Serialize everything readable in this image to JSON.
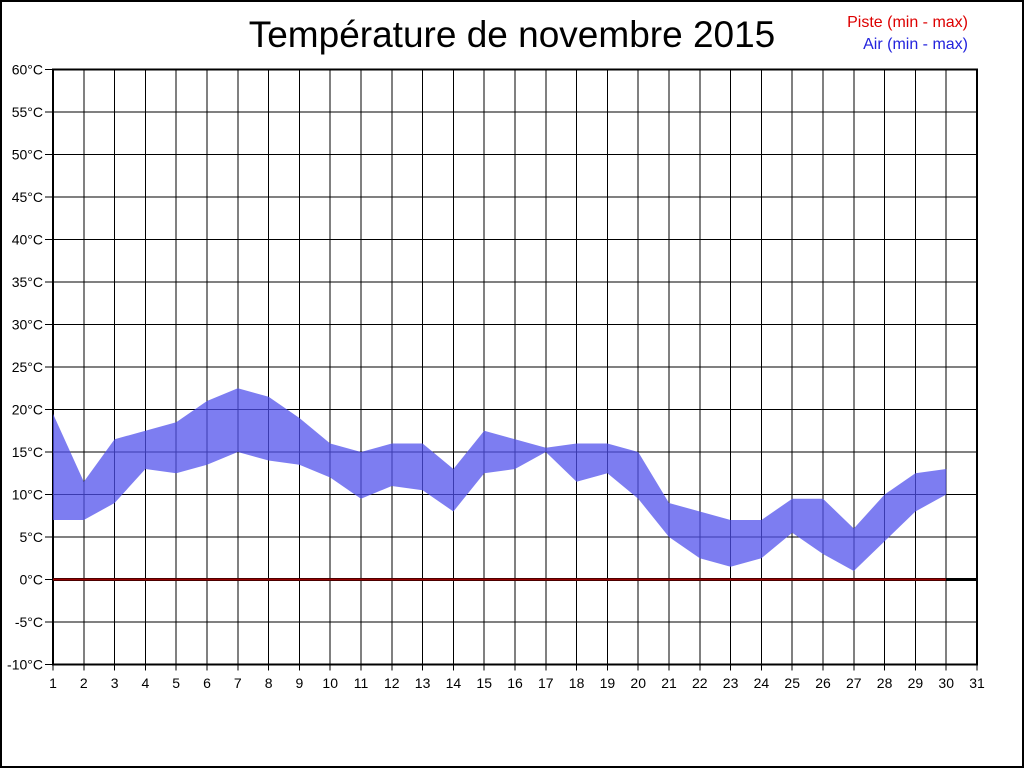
{
  "chart_data": {
    "type": "area",
    "title": "Température de novembre 2015",
    "legend": [
      {
        "label": "Piste (min - max)",
        "color": "#DD0000"
      },
      {
        "label": "Air (min - max)",
        "color": "#2222DD"
      }
    ],
    "xlabel": "",
    "ylabel": "",
    "xlim": [
      1,
      31
    ],
    "ylim": [
      -10,
      60
    ],
    "grid": true,
    "legend_position": "top-right",
    "x_tick_labels": [
      "1",
      "2",
      "3",
      "4",
      "5",
      "6",
      "7",
      "8",
      "9",
      "10",
      "11",
      "12",
      "13",
      "14",
      "15",
      "16",
      "17",
      "18",
      "19",
      "20",
      "21",
      "22",
      "23",
      "24",
      "25",
      "26",
      "27",
      "28",
      "29",
      "30",
      "31"
    ],
    "y_tick_values": [
      60,
      55,
      50,
      45,
      40,
      35,
      30,
      25,
      20,
      15,
      10,
      5,
      0,
      -5,
      -10
    ],
    "y_tick_labels": [
      "60°C",
      "55°C",
      "50°C",
      "45°C",
      "40°C",
      "35°C",
      "30°C",
      "25°C",
      "20°C",
      "15°C",
      "10°C",
      "5°C",
      "0°C",
      "-5°C",
      "-10°C"
    ],
    "days": [
      1,
      2,
      3,
      4,
      5,
      6,
      7,
      8,
      9,
      10,
      11,
      12,
      13,
      14,
      15,
      16,
      17,
      18,
      19,
      20,
      21,
      22,
      23,
      24,
      25,
      26,
      27,
      28,
      29,
      30
    ],
    "series": [
      {
        "name": "Air max",
        "values": [
          19.5,
          11.5,
          16.5,
          17.5,
          18.5,
          21,
          22.5,
          21.5,
          19,
          16,
          15,
          16,
          16,
          13,
          17.5,
          16.5,
          15.5,
          16,
          16,
          15,
          9,
          8,
          7,
          7,
          9.5,
          9.5,
          6,
          10,
          12.5,
          13
        ]
      },
      {
        "name": "Air min",
        "values": [
          7,
          7,
          9,
          13,
          12.5,
          13.5,
          15,
          14,
          13.5,
          12,
          9.5,
          11,
          10.5,
          8,
          12.5,
          13,
          15,
          11.5,
          12.5,
          9.5,
          5,
          2.5,
          1.5,
          2.5,
          5.5,
          3,
          1,
          4.5,
          8,
          10
        ]
      },
      {
        "name": "Piste max",
        "values": [
          0,
          0,
          0,
          0,
          0,
          0,
          0,
          0,
          0,
          0,
          0,
          0,
          0,
          0,
          0,
          0,
          0,
          0,
          0,
          0,
          0,
          0,
          0,
          0,
          0,
          0,
          0,
          0,
          0,
          0
        ]
      },
      {
        "name": "Piste min",
        "values": [
          0,
          0,
          0,
          0,
          0,
          0,
          0,
          0,
          0,
          0,
          0,
          0,
          0,
          0,
          0,
          0,
          0,
          0,
          0,
          0,
          0,
          0,
          0,
          0,
          0,
          0,
          0,
          0,
          0,
          0
        ]
      }
    ],
    "colors": {
      "air_band_fill": "#5050EC",
      "air_band_opacity": 0.74,
      "piste_line": "#990000",
      "zero_line": "#000000",
      "grid": "#000000"
    }
  }
}
